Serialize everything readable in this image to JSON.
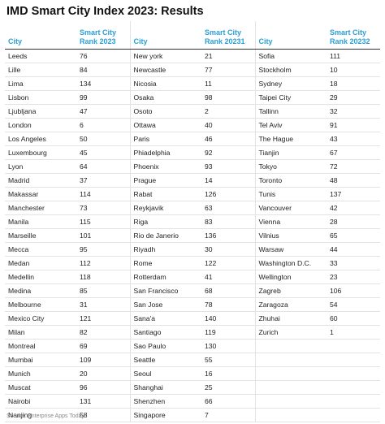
{
  "title": "IMD Smart City Index 2023: Results",
  "headers": {
    "col1": {
      "city": "City",
      "rank": "Smart City Rank 2023"
    },
    "col2": {
      "city": "City",
      "rank": "Smart City Rank 20231"
    },
    "col3": {
      "city": "City",
      "rank": "Smart City Rank 20232"
    }
  },
  "rows": [
    [
      [
        "Leeds",
        "76"
      ],
      [
        "New york",
        "21"
      ],
      [
        "Sofia",
        "111"
      ]
    ],
    [
      [
        "Lille",
        "84"
      ],
      [
        "Newcastle",
        "77"
      ],
      [
        "Stockholm",
        "10"
      ]
    ],
    [
      [
        "Lima",
        "134"
      ],
      [
        "Nicosia",
        "11"
      ],
      [
        "Sydney",
        "18"
      ]
    ],
    [
      [
        "Lisbon",
        "99"
      ],
      [
        "Osaka",
        "98"
      ],
      [
        "Taipei City",
        "29"
      ]
    ],
    [
      [
        "Ljubljana",
        "47"
      ],
      [
        "Osoto",
        "2"
      ],
      [
        "Tallinn",
        "32"
      ]
    ],
    [
      [
        "London",
        "6"
      ],
      [
        "Ottawa",
        "40"
      ],
      [
        "Tel Aviv",
        "91"
      ]
    ],
    [
      [
        "Los Angeles",
        "50"
      ],
      [
        "Paris",
        "46"
      ],
      [
        "The Hague",
        "43"
      ]
    ],
    [
      [
        "Luxembourg",
        "45"
      ],
      [
        "Phiadelphia",
        "92"
      ],
      [
        "Tianjin",
        "67"
      ]
    ],
    [
      [
        "Lyon",
        "64"
      ],
      [
        "Phoenix",
        "93"
      ],
      [
        "Tokyo",
        "72"
      ]
    ],
    [
      [
        "Madrid",
        "37"
      ],
      [
        "Prague",
        "14"
      ],
      [
        "Toronto",
        "48"
      ]
    ],
    [
      [
        "Makassar",
        "114"
      ],
      [
        "Rabat",
        "126"
      ],
      [
        "Tunis",
        "137"
      ]
    ],
    [
      [
        "Manchester",
        "73"
      ],
      [
        "Reykjavik",
        "63"
      ],
      [
        "Vancouver",
        "42"
      ]
    ],
    [
      [
        "Manila",
        "115"
      ],
      [
        "Riga",
        "83"
      ],
      [
        "Vienna",
        "28"
      ]
    ],
    [
      [
        "Marseille",
        "101"
      ],
      [
        "Rio de Janerio",
        "136"
      ],
      [
        "Vilnius",
        "65"
      ]
    ],
    [
      [
        "Mecca",
        "95"
      ],
      [
        "Riyadh",
        "30"
      ],
      [
        "Warsaw",
        "44"
      ]
    ],
    [
      [
        "Medan",
        "112"
      ],
      [
        "Rome",
        "122"
      ],
      [
        "Washington D.C.",
        "33"
      ]
    ],
    [
      [
        "Medellin",
        "118"
      ],
      [
        "Rotterdam",
        "41"
      ],
      [
        "Wellington",
        "23"
      ]
    ],
    [
      [
        "Medina",
        "85"
      ],
      [
        "San Francisco",
        "68"
      ],
      [
        "Zagreb",
        "106"
      ]
    ],
    [
      [
        "Melbourne",
        "31"
      ],
      [
        "San Jose",
        "78"
      ],
      [
        "Zaragoza",
        "54"
      ]
    ],
    [
      [
        "Mexico City",
        "121"
      ],
      [
        "Sana'a",
        "140"
      ],
      [
        "Zhuhai",
        "60"
      ]
    ],
    [
      [
        "Milan",
        "82"
      ],
      [
        "Santiago",
        "119"
      ],
      [
        "Zurich",
        "1"
      ]
    ],
    [
      [
        "Montreal",
        "69"
      ],
      [
        "Sao Paulo",
        "130"
      ],
      [
        "",
        ""
      ]
    ],
    [
      [
        "Mumbai",
        "109"
      ],
      [
        "Seattle",
        "55"
      ],
      [
        "",
        ""
      ]
    ],
    [
      [
        "Munich",
        "20"
      ],
      [
        "Seoul",
        "16"
      ],
      [
        "",
        ""
      ]
    ],
    [
      [
        "Muscat",
        "96"
      ],
      [
        "Shanghai",
        "25"
      ],
      [
        "",
        ""
      ]
    ],
    [
      [
        "Nairobi",
        "131"
      ],
      [
        "Shenzhen",
        "66"
      ],
      [
        "",
        ""
      ]
    ],
    [
      [
        "Nanjing",
        "58"
      ],
      [
        "Singapore",
        "7"
      ],
      [
        "",
        ""
      ]
    ]
  ],
  "source": "Source: Enterprise Apps Today"
}
